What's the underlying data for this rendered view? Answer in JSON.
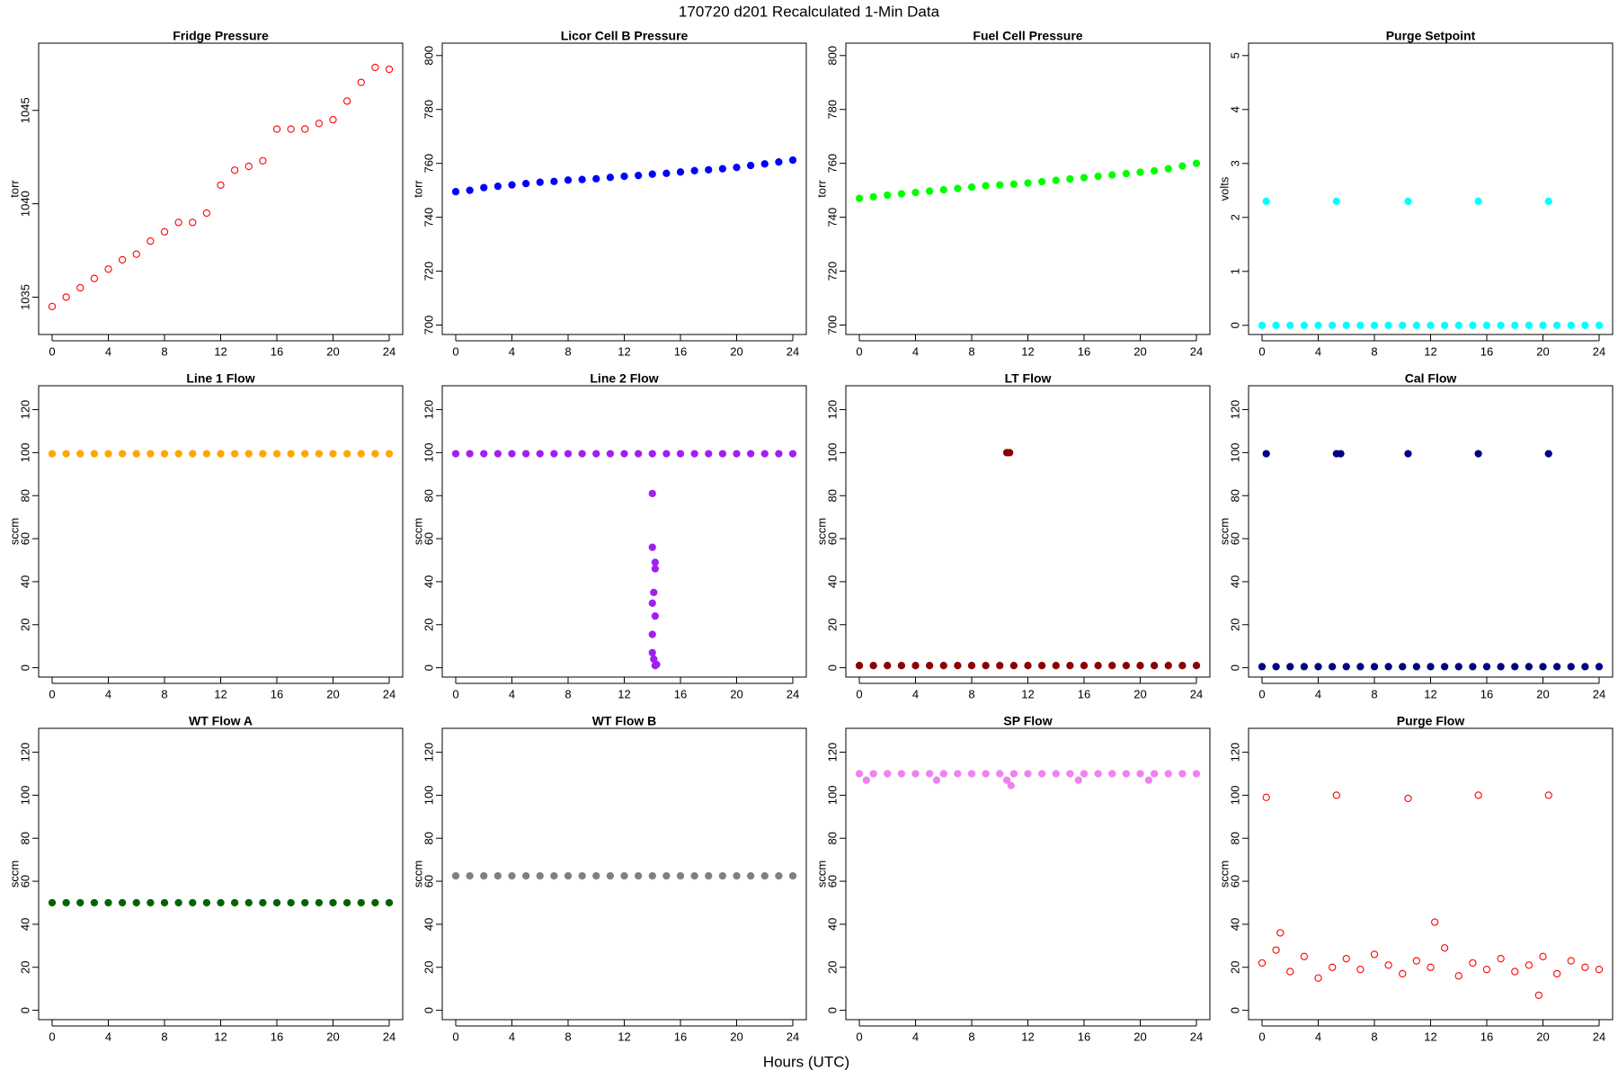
{
  "title": "170720   d201   Recalculated 1-Min Data",
  "xlabel": "Hours (UTC)",
  "chart_data": [
    {
      "type": "scatter",
      "title": "Fridge Pressure",
      "ylabel": "torr",
      "color": "#ff0000",
      "filled": false,
      "xlim": [
        -0.96,
        24.96
      ],
      "xticks": [
        0,
        4,
        8,
        12,
        16,
        20,
        24
      ],
      "ylim": [
        1033,
        1048.6
      ],
      "yticks": [
        1035,
        1040,
        1045
      ],
      "x": [
        0,
        1,
        2,
        3,
        4,
        5,
        6,
        7,
        8,
        9,
        10,
        11,
        12,
        13,
        14,
        15,
        16,
        17,
        18,
        19,
        20,
        21,
        22,
        23,
        24
      ],
      "values": [
        1034.5,
        1035,
        1035.5,
        1036,
        1036.5,
        1037,
        1037.3,
        1038,
        1038.5,
        1039,
        1039,
        1039.5,
        1041,
        1041.8,
        1042,
        1042.3,
        1044,
        1044,
        1044,
        1044.3,
        1044.5,
        1045.5,
        1046.5,
        1047.3,
        1047.2
      ]
    },
    {
      "type": "scatter",
      "title": "Licor Cell B Pressure",
      "ylabel": "torr",
      "color": "#0000ff",
      "filled": true,
      "xlim": [
        -0.96,
        24.96
      ],
      "xticks": [
        0,
        4,
        8,
        12,
        16,
        20,
        24
      ],
      "ylim": [
        696.5,
        804.6
      ],
      "yticks": [
        700,
        720,
        740,
        760,
        780,
        800
      ],
      "x": [
        0,
        1,
        2,
        3,
        4,
        5,
        6,
        7,
        8,
        9,
        10,
        11,
        12,
        13,
        14,
        15,
        16,
        17,
        18,
        19,
        20,
        21,
        22,
        23,
        24
      ],
      "values": [
        749.5,
        750,
        751,
        751.5,
        752,
        752.5,
        753,
        753.3,
        753.8,
        754,
        754.3,
        754.8,
        755.2,
        755.5,
        756,
        756.3,
        756.8,
        757.3,
        757.6,
        758,
        758.5,
        759.2,
        759.8,
        760.5,
        761.2
      ]
    },
    {
      "type": "scatter",
      "title": "Fuel Cell Pressure",
      "ylabel": "torr",
      "color": "#00ff00",
      "filled": true,
      "xlim": [
        -0.96,
        24.96
      ],
      "xticks": [
        0,
        4,
        8,
        12,
        16,
        20,
        24
      ],
      "ylim": [
        696.5,
        804.6
      ],
      "yticks": [
        700,
        720,
        740,
        760,
        780,
        800
      ],
      "x": [
        0,
        1,
        2,
        3,
        4,
        5,
        6,
        7,
        8,
        9,
        10,
        11,
        12,
        13,
        14,
        15,
        16,
        17,
        18,
        19,
        20,
        21,
        22,
        23,
        24
      ],
      "values": [
        747,
        747.6,
        748.2,
        748.7,
        749.2,
        749.7,
        750.2,
        750.7,
        751.2,
        751.7,
        752,
        752.3,
        752.7,
        753.2,
        753.7,
        754.2,
        754.7,
        755.2,
        755.7,
        756.2,
        756.7,
        757.2,
        758,
        759,
        760
      ]
    },
    {
      "type": "scatter",
      "title": "Purge Setpoint",
      "ylabel": "volts",
      "color": "#00ffff",
      "filled": true,
      "xlim": [
        -0.96,
        24.96
      ],
      "xticks": [
        0,
        4,
        8,
        12,
        16,
        20,
        24
      ],
      "ylim": [
        -0.17,
        5.23
      ],
      "yticks": [
        0,
        1,
        2,
        3,
        4,
        5
      ],
      "x": [
        0,
        1,
        2,
        3,
        4,
        5,
        6,
        7,
        8,
        9,
        10,
        11,
        12,
        13,
        14,
        15,
        16,
        17,
        18,
        19,
        20,
        21,
        22,
        23,
        24,
        0.3,
        5.3,
        10.4,
        15.4,
        20.4
      ],
      "values": [
        0,
        0,
        0,
        0,
        0,
        0,
        0,
        0,
        0,
        0,
        0,
        0,
        0,
        0,
        0,
        0,
        0,
        0,
        0,
        0,
        0,
        0,
        0,
        0,
        0,
        2.3,
        2.3,
        2.3,
        2.3,
        2.3
      ]
    },
    {
      "type": "scatter",
      "title": "Line 1 Flow",
      "ylabel": "sccm",
      "color": "#ffa500",
      "filled": true,
      "xlim": [
        -0.96,
        24.96
      ],
      "xticks": [
        0,
        4,
        8,
        12,
        16,
        20,
        24
      ],
      "ylim": [
        -4.35,
        131.1
      ],
      "yticks": [
        0,
        20,
        40,
        60,
        80,
        100,
        120
      ],
      "x": [
        0,
        1,
        2,
        3,
        4,
        5,
        6,
        7,
        8,
        9,
        10,
        11,
        12,
        13,
        14,
        15,
        16,
        17,
        18,
        19,
        20,
        21,
        22,
        23,
        24
      ],
      "values": [
        99.5,
        99.5,
        99.5,
        99.5,
        99.5,
        99.5,
        99.5,
        99.5,
        99.5,
        99.5,
        99.5,
        99.5,
        99.5,
        99.5,
        99.5,
        99.5,
        99.5,
        99.5,
        99.5,
        99.5,
        99.5,
        99.5,
        99.5,
        99.5,
        99.5
      ]
    },
    {
      "type": "scatter",
      "title": "Line 2 Flow",
      "ylabel": "sccm",
      "color": "#a020f0",
      "filled": true,
      "xlim": [
        -0.96,
        24.96
      ],
      "xticks": [
        0,
        4,
        8,
        12,
        16,
        20,
        24
      ],
      "ylim": [
        -4.35,
        131.1
      ],
      "yticks": [
        0,
        20,
        40,
        60,
        80,
        100,
        120
      ],
      "x": [
        0,
        1,
        2,
        3,
        4,
        5,
        6,
        7,
        8,
        9,
        10,
        11,
        12,
        13,
        14,
        15,
        16,
        17,
        18,
        19,
        20,
        21,
        22,
        23,
        24,
        14.0,
        14.0,
        14.2,
        14.2,
        14.1,
        14.0,
        14.2,
        14.0,
        14.0,
        14.1,
        14.3,
        14.2
      ],
      "values": [
        99.5,
        99.5,
        99.5,
        99.5,
        99.5,
        99.5,
        99.5,
        99.5,
        99.5,
        99.5,
        99.5,
        99.5,
        99.5,
        99.5,
        99.5,
        99.5,
        99.5,
        99.5,
        99.5,
        99.5,
        99.5,
        99.5,
        99.5,
        99.5,
        99.5,
        81,
        56,
        49,
        46,
        35,
        30,
        24,
        15.5,
        7,
        4,
        1.5,
        1
      ]
    },
    {
      "type": "scatter",
      "title": "LT Flow",
      "ylabel": "sccm",
      "color": "#8b0000",
      "filled": true,
      "xlim": [
        -0.96,
        24.96
      ],
      "xticks": [
        0,
        4,
        8,
        12,
        16,
        20,
        24
      ],
      "ylim": [
        -4.35,
        131.1
      ],
      "yticks": [
        0,
        20,
        40,
        60,
        80,
        100,
        120
      ],
      "x": [
        0,
        1,
        2,
        3,
        4,
        5,
        6,
        7,
        8,
        9,
        10,
        11,
        12,
        13,
        14,
        15,
        16,
        17,
        18,
        19,
        20,
        21,
        22,
        23,
        24,
        10.5,
        10.7
      ],
      "values": [
        1,
        1,
        1,
        1,
        1,
        1,
        1,
        1,
        1,
        1,
        1,
        1,
        1,
        1,
        1,
        1,
        1,
        1,
        1,
        1,
        1,
        1,
        1,
        1,
        1,
        100,
        100
      ]
    },
    {
      "type": "scatter",
      "title": "Cal Flow",
      "ylabel": "sccm",
      "color": "#000080",
      "filled": true,
      "xlim": [
        -0.96,
        24.96
      ],
      "xticks": [
        0,
        4,
        8,
        12,
        16,
        20,
        24
      ],
      "ylim": [
        -4.35,
        131.1
      ],
      "yticks": [
        0,
        20,
        40,
        60,
        80,
        100,
        120
      ],
      "x": [
        0,
        1,
        2,
        3,
        4,
        5,
        6,
        7,
        8,
        9,
        10,
        11,
        12,
        13,
        14,
        15,
        16,
        17,
        18,
        19,
        20,
        21,
        22,
        23,
        24,
        0.3,
        5.3,
        5.6,
        10.4,
        15.4,
        20.4
      ],
      "values": [
        0.5,
        0.5,
        0.5,
        0.5,
        0.5,
        0.5,
        0.5,
        0.5,
        0.5,
        0.5,
        0.5,
        0.5,
        0.5,
        0.5,
        0.5,
        0.5,
        0.5,
        0.5,
        0.5,
        0.5,
        0.5,
        0.5,
        0.5,
        0.5,
        0.5,
        99.5,
        99.5,
        99.5,
        99.5,
        99.5,
        99.5
      ]
    },
    {
      "type": "scatter",
      "title": "WT Flow A",
      "ylabel": "sccm",
      "color": "#006400",
      "filled": true,
      "xlim": [
        -0.96,
        24.96
      ],
      "xticks": [
        0,
        4,
        8,
        12,
        16,
        20,
        24
      ],
      "ylim": [
        -4.35,
        131.1
      ],
      "yticks": [
        0,
        20,
        40,
        60,
        80,
        100,
        120
      ],
      "x": [
        0,
        1,
        2,
        3,
        4,
        5,
        6,
        7,
        8,
        9,
        10,
        11,
        12,
        13,
        14,
        15,
        16,
        17,
        18,
        19,
        20,
        21,
        22,
        23,
        24
      ],
      "values": [
        50,
        50,
        50,
        50,
        50,
        50,
        50,
        50,
        50,
        50,
        50,
        50,
        50,
        50,
        50,
        50,
        50,
        50,
        50,
        50,
        50,
        50,
        50,
        50,
        50
      ]
    },
    {
      "type": "scatter",
      "title": "WT Flow B",
      "ylabel": "sccm",
      "color": "#808080",
      "filled": true,
      "xlim": [
        -0.96,
        24.96
      ],
      "xticks": [
        0,
        4,
        8,
        12,
        16,
        20,
        24
      ],
      "ylim": [
        -4.35,
        131.1
      ],
      "yticks": [
        0,
        20,
        40,
        60,
        80,
        100,
        120
      ],
      "x": [
        0,
        1,
        2,
        3,
        4,
        5,
        6,
        7,
        8,
        9,
        10,
        11,
        12,
        13,
        14,
        15,
        16,
        17,
        18,
        19,
        20,
        21,
        22,
        23,
        24
      ],
      "values": [
        62.5,
        62.5,
        62.5,
        62.5,
        62.5,
        62.5,
        62.5,
        62.5,
        62.5,
        62.5,
        62.5,
        62.5,
        62.5,
        62.5,
        62.5,
        62.5,
        62.5,
        62.5,
        62.5,
        62.5,
        62.5,
        62.5,
        62.5,
        62.5,
        62.5
      ]
    },
    {
      "type": "scatter",
      "title": "SP Flow",
      "ylabel": "sccm",
      "color": "#ee82ee",
      "filled": true,
      "xlim": [
        -0.96,
        24.96
      ],
      "xticks": [
        0,
        4,
        8,
        12,
        16,
        20,
        24
      ],
      "ylim": [
        -4.35,
        131.1
      ],
      "yticks": [
        0,
        20,
        40,
        60,
        80,
        100,
        120
      ],
      "x": [
        0,
        1,
        2,
        3,
        4,
        5,
        6,
        7,
        8,
        9,
        10,
        11,
        12,
        13,
        14,
        15,
        16,
        17,
        18,
        19,
        20,
        21,
        22,
        23,
        24,
        0.5,
        5.5,
        10.5,
        15.6,
        20.6,
        10.8
      ],
      "values": [
        110,
        110,
        110,
        110,
        110,
        110,
        110,
        110,
        110,
        110,
        110,
        110,
        110,
        110,
        110,
        110,
        110,
        110,
        110,
        110,
        110,
        110,
        110,
        110,
        110,
        107,
        107,
        107,
        107,
        107,
        104.5
      ]
    },
    {
      "type": "scatter",
      "title": "Purge Flow",
      "ylabel": "sccm",
      "color": "#ff0000",
      "filled": false,
      "xlim": [
        -0.96,
        24.96
      ],
      "xticks": [
        0,
        4,
        8,
        12,
        16,
        20,
        24
      ],
      "ylim": [
        -4.35,
        131.1
      ],
      "yticks": [
        0,
        20,
        40,
        60,
        80,
        100,
        120
      ],
      "x": [
        0,
        1,
        2,
        3,
        4,
        5,
        6,
        7,
        8,
        9,
        10,
        11,
        12,
        13,
        14,
        15,
        16,
        17,
        18,
        19,
        20,
        21,
        22,
        23,
        24,
        0.3,
        5.3,
        10.4,
        15.4,
        20.4,
        1.3,
        12.3,
        19.7
      ],
      "values": [
        22,
        28,
        18,
        25,
        15,
        20,
        24,
        19,
        26,
        21,
        17,
        23,
        20,
        29,
        16,
        22,
        19,
        24,
        18,
        21,
        25,
        17,
        23,
        20,
        19,
        99,
        100,
        98.5,
        100,
        100,
        36,
        41,
        7
      ]
    }
  ]
}
